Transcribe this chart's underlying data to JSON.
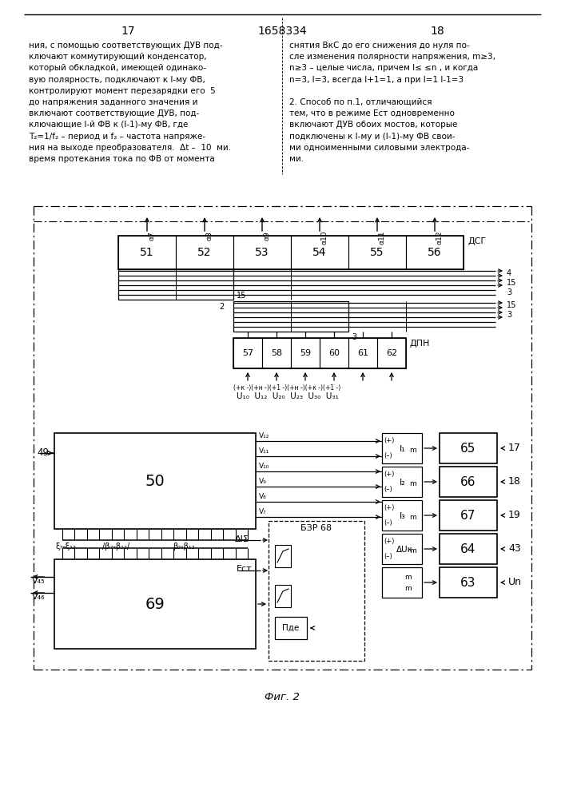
{
  "page_left": "17",
  "page_center": "1658334",
  "page_right": "18",
  "text_left": [
    "ния, с помощью соответствующих ДУВ под-",
    "ключают коммутирующий конденсатор,",
    "который обкладкой, имеющей одинако-",
    "вую полярность, подключают к I-му ФВ,",
    "контролируют момент перезарядки его  5",
    "до напряжения заданного значения и",
    "включают соответствующие ДУВ, под-",
    "ключающие I-й ФВ к (I-1)-му ФВ, где",
    "T₂=1/f₂ – период и f₂ – частота напряже-",
    "ния на выходе преобразователя.  Δt –  10  ми.",
    "время протекания тока по ФВ от момента"
  ],
  "text_right": [
    "снятия ВкС до его снижения до нуля по-",
    "сле изменения полярности напряжения, m≥3,",
    "n≥3 – целые числа, причем l≤ ≤n , и когда",
    "n=3, l=3, всегда l+1=1, а при l=1 l-1=3",
    "",
    "2. Способ по п.1, отличающийся",
    "тем, что в режиме Eст одновременно",
    "включают ДУВ обоих мостов, которые",
    "подключены к I-му и (I-1)-му ФВ свои-",
    "ми одноименными силовыми электрода-",
    "ми."
  ],
  "bg_color": "#ffffff",
  "lc": "#000000",
  "tc": "#000000"
}
